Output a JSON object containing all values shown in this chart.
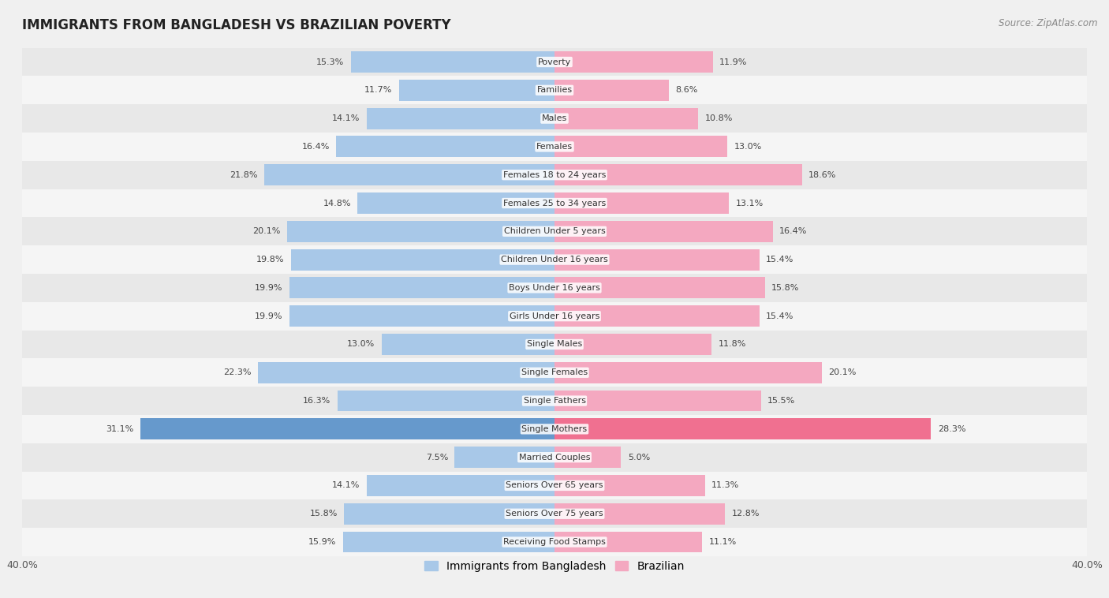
{
  "title": "IMMIGRANTS FROM BANGLADESH VS BRAZILIAN POVERTY",
  "source": "Source: ZipAtlas.com",
  "categories": [
    "Poverty",
    "Families",
    "Males",
    "Females",
    "Females 18 to 24 years",
    "Females 25 to 34 years",
    "Children Under 5 years",
    "Children Under 16 years",
    "Boys Under 16 years",
    "Girls Under 16 years",
    "Single Males",
    "Single Females",
    "Single Fathers",
    "Single Mothers",
    "Married Couples",
    "Seniors Over 65 years",
    "Seniors Over 75 years",
    "Receiving Food Stamps"
  ],
  "bangladesh_values": [
    15.3,
    11.7,
    14.1,
    16.4,
    21.8,
    14.8,
    20.1,
    19.8,
    19.9,
    19.9,
    13.0,
    22.3,
    16.3,
    31.1,
    7.5,
    14.1,
    15.8,
    15.9
  ],
  "brazil_values": [
    11.9,
    8.6,
    10.8,
    13.0,
    18.6,
    13.1,
    16.4,
    15.4,
    15.8,
    15.4,
    11.8,
    20.1,
    15.5,
    28.3,
    5.0,
    11.3,
    12.8,
    11.1
  ],
  "bangladesh_color": "#a8c8e8",
  "brazil_color": "#f4a8c0",
  "bangladesh_highlight_color": "#6699cc",
  "brazil_highlight_color": "#f07090",
  "highlight_row": 13,
  "xlim": 40.0,
  "bar_height": 0.75,
  "background_color": "#f0f0f0",
  "row_bg_even": "#e8e8e8",
  "row_bg_odd": "#f5f5f5",
  "label_fontsize": 8.0,
  "title_fontsize": 12,
  "legend_fontsize": 10,
  "value_fontsize": 8.0
}
